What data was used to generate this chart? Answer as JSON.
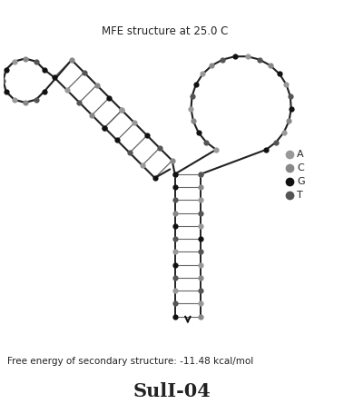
{
  "title": "MFE structure at 25.0 C",
  "footer": "Free energy of secondary structure: -11.48 kcal/mol",
  "label": "SulI-04",
  "node_color_A": "#999999",
  "node_color_C": "#888888",
  "node_color_G": "#111111",
  "node_color_T": "#555555",
  "background": "#ffffff",
  "line_color": "#222222",
  "legend_items": [
    "A",
    "C",
    "G",
    "T"
  ],
  "legend_colors": [
    "#999999",
    "#888888",
    "#111111",
    "#555555"
  ]
}
